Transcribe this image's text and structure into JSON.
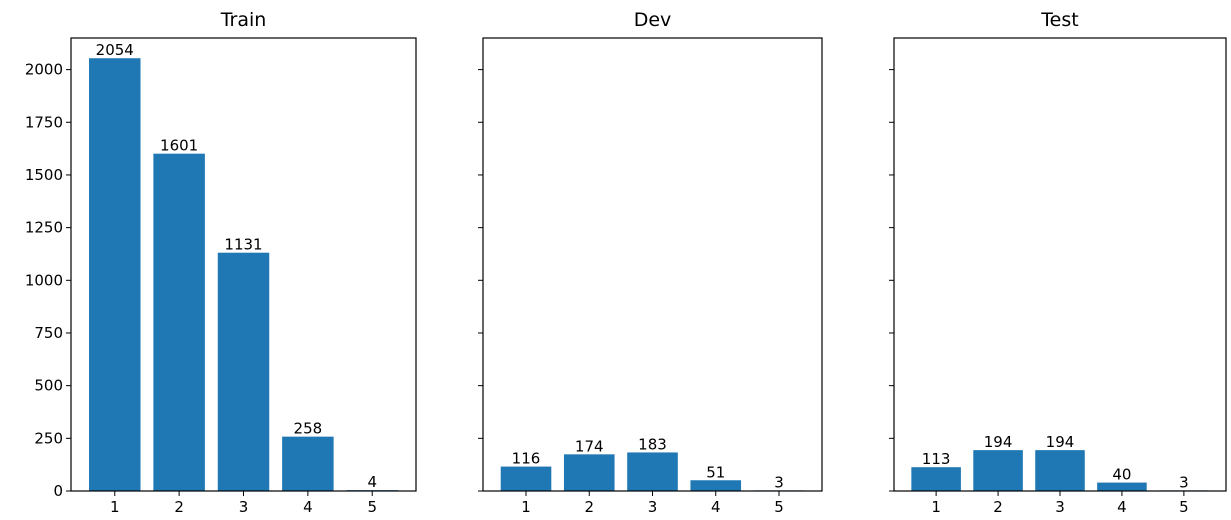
{
  "chart_data": [
    {
      "type": "bar",
      "title": "Train",
      "categories": [
        "1",
        "2",
        "3",
        "4",
        "5"
      ],
      "values": [
        2054,
        1601,
        1131,
        258,
        4
      ],
      "data_labels": [
        "2054",
        "1601",
        "1131",
        "258",
        "4"
      ],
      "color": "#1f77b4",
      "ylim": [
        0,
        2150
      ],
      "yticks": [
        0,
        250,
        500,
        750,
        1000,
        1250,
        1500,
        1750,
        2000
      ],
      "ytick_labels": [
        "0",
        "250",
        "500",
        "750",
        "1000",
        "1250",
        "1500",
        "1750",
        "2000"
      ],
      "xlabel": "",
      "ylabel": "",
      "grid": false
    },
    {
      "type": "bar",
      "title": "Dev",
      "categories": [
        "1",
        "2",
        "3",
        "4",
        "5"
      ],
      "values": [
        116,
        174,
        183,
        51,
        3
      ],
      "data_labels": [
        "116",
        "174",
        "183",
        "51",
        "3"
      ],
      "color": "#1f77b4",
      "ylim": [
        0,
        2150
      ],
      "yticks": [
        0,
        250,
        500,
        750,
        1000,
        1250,
        1500,
        1750,
        2000
      ],
      "xlabel": "",
      "ylabel": "",
      "grid": false
    },
    {
      "type": "bar",
      "title": "Test",
      "categories": [
        "1",
        "2",
        "3",
        "4",
        "5"
      ],
      "values": [
        113,
        194,
        194,
        40,
        3
      ],
      "data_labels": [
        "113",
        "194",
        "194",
        "40",
        "3"
      ],
      "color": "#1f77b4",
      "ylim": [
        0,
        2150
      ],
      "yticks": [
        0,
        250,
        500,
        750,
        1000,
        1250,
        1500,
        1750,
        2000
      ],
      "xlabel": "",
      "ylabel": "",
      "grid": false
    }
  ]
}
